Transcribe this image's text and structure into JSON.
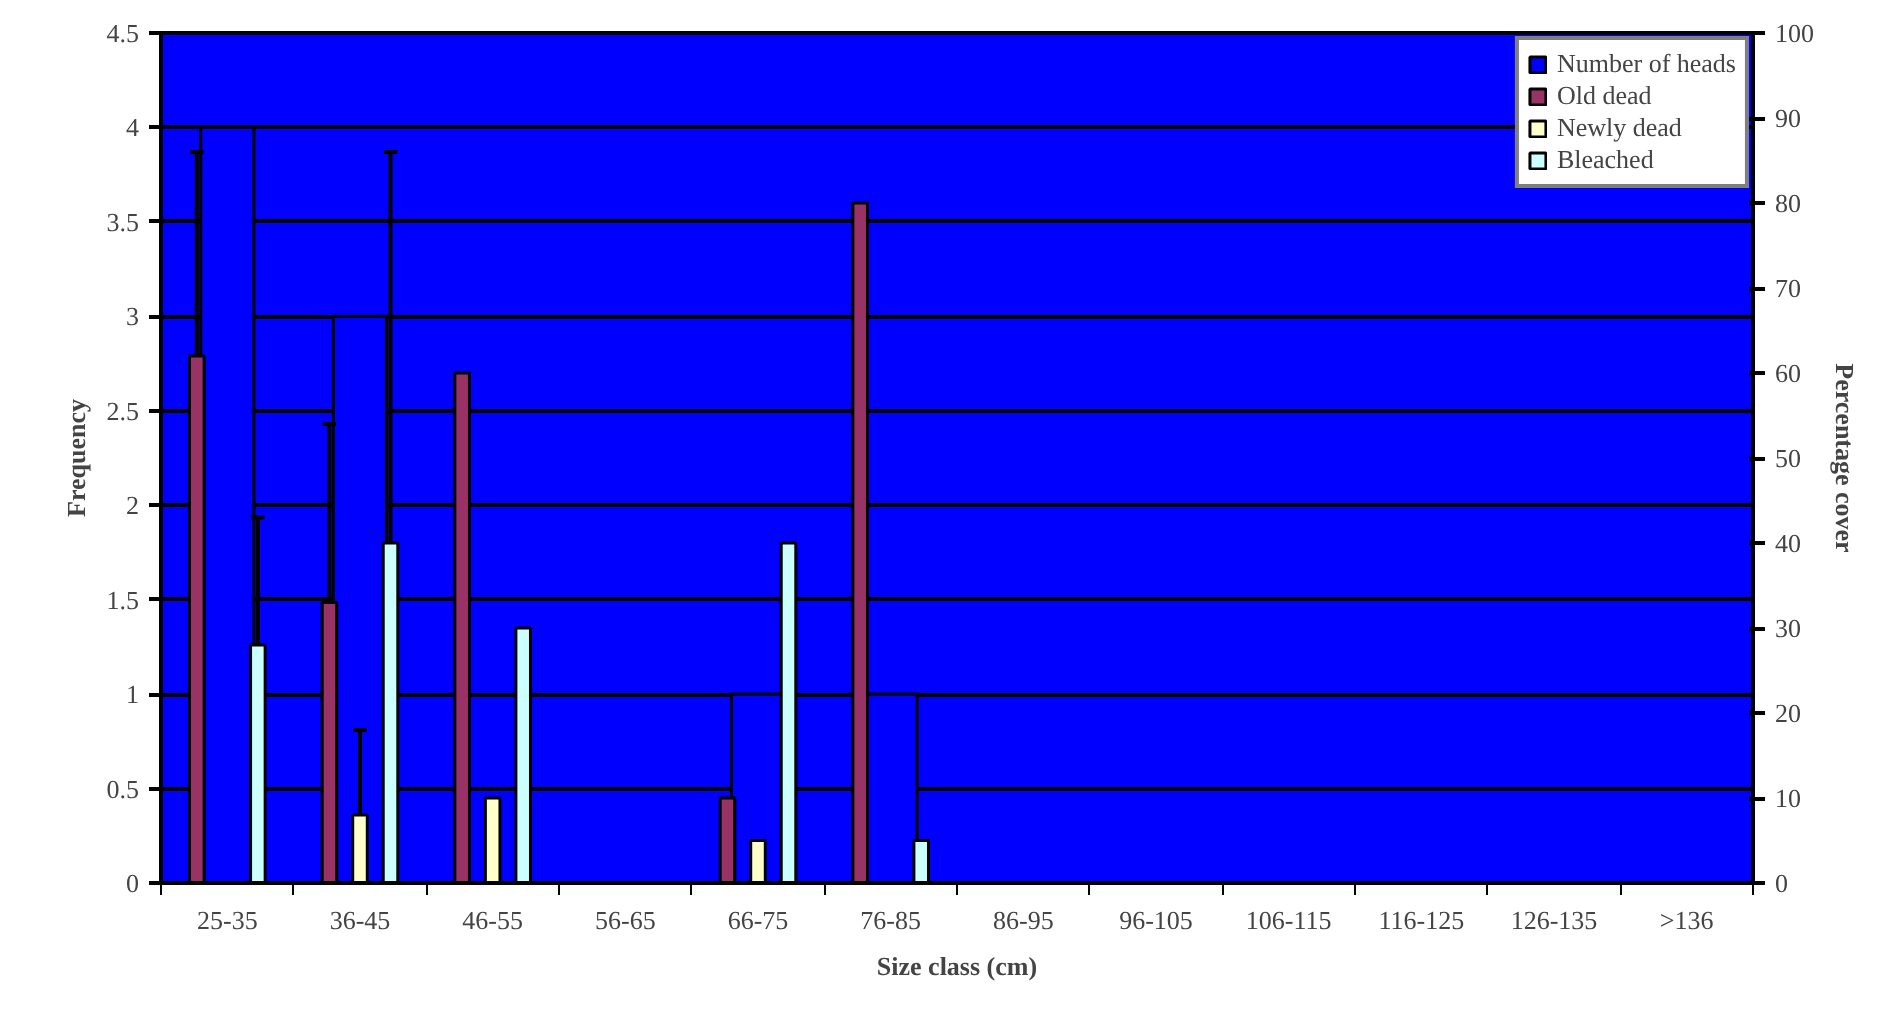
{
  "chart_data": {
    "type": "bar",
    "xlabel": "Size class (cm)",
    "ylabel": "Frequency",
    "y2label": "Percentage cover",
    "categories": [
      "25-35",
      "36-45",
      "46-55",
      "56-65",
      "66-75",
      "76-85",
      "86-95",
      "96-105",
      "106-115",
      "116-125",
      "126-135",
      ">136"
    ],
    "series": [
      {
        "name": "Number of heads",
        "color": "#0000ff",
        "values": [
          4,
          3,
          null,
          null,
          1,
          1,
          null,
          null,
          null,
          null,
          null,
          null
        ]
      },
      {
        "name": "Old dead",
        "color": "#993366",
        "axis": "y2",
        "values": [
          62,
          33,
          60,
          null,
          10,
          80,
          null,
          null,
          null,
          null,
          null,
          null
        ],
        "errors": [
          24,
          21,
          null,
          null,
          null,
          null,
          null,
          null,
          null,
          null,
          null,
          null
        ]
      },
      {
        "name": "Newly dead",
        "color": "#ffffcc",
        "axis": "y2",
        "values": [
          null,
          8,
          10,
          null,
          5,
          null,
          null,
          null,
          null,
          null,
          null,
          null
        ],
        "errors": [
          null,
          10,
          null,
          null,
          null,
          null,
          null,
          null,
          null,
          null,
          null,
          null
        ]
      },
      {
        "name": "Bleached",
        "color": "#ccffff",
        "axis": "y2",
        "values": [
          28,
          40,
          30,
          null,
          40,
          5,
          null,
          null,
          null,
          null,
          null,
          null
        ],
        "errors": [
          15,
          46,
          null,
          null,
          null,
          null,
          null,
          null,
          null,
          null,
          null,
          null
        ]
      }
    ],
    "ylim": [
      0,
      4.5
    ],
    "yticks": [
      0,
      0.5,
      1,
      1.5,
      2,
      2.5,
      3,
      3.5,
      4,
      4.5
    ],
    "y2lim": [
      0,
      100
    ],
    "y2ticks": [
      0,
      10,
      20,
      30,
      40,
      50,
      60,
      70,
      80,
      90,
      100
    ],
    "grid": "y",
    "legend": "top right"
  }
}
